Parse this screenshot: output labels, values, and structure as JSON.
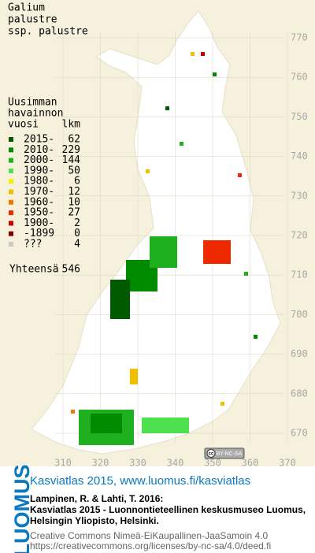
{
  "title": [
    "Galium",
    "palustre",
    "ssp. palustre"
  ],
  "legend": {
    "header": [
      "Uusimman",
      "havainnon",
      "vuosi"
    ],
    "count_header": "lkm",
    "rows": [
      {
        "label": "2015-",
        "count": 62,
        "color": "#005a00"
      },
      {
        "label": "2010-",
        "count": 229,
        "color": "#008a00"
      },
      {
        "label": "2000-",
        "count": 144,
        "color": "#1fb01f"
      },
      {
        "label": "1990-",
        "count": 50,
        "color": "#4ee04e"
      },
      {
        "label": "1980-",
        "count": 6,
        "color": "#f2f200"
      },
      {
        "label": "1970-",
        "count": 12,
        "color": "#f0c000"
      },
      {
        "label": "1960-",
        "count": 10,
        "color": "#f07800"
      },
      {
        "label": "1950-",
        "count": 27,
        "color": "#f02800"
      },
      {
        "label": "1900-",
        "count": 2,
        "color": "#c80000"
      },
      {
        "label": "-1899",
        "count": 0,
        "color": "#800000"
      },
      {
        "label": "???",
        "count": 4,
        "color": "#c8c8c8"
      }
    ],
    "total_label": "Yhteensä",
    "total": 546
  },
  "grid": {
    "yticks": [
      670,
      680,
      690,
      700,
      710,
      720,
      730,
      740,
      750,
      760,
      770
    ],
    "xticks": [
      310,
      320,
      330,
      340,
      350,
      360,
      370
    ]
  },
  "license_badge": {
    "icon": "cc",
    "text": "BY-NC-SA"
  },
  "footer": {
    "brand": "LUOMUS",
    "headline": "Kasviatlas 2015, www.luomus.fi/kasviatlas",
    "citation": [
      "Lampinen, R. & Lahti, T. 2016:",
      "Kasviatlas 2015 - Luonnontieteellinen keskusmuseo Luomus,",
      "Helsingin Yliopisto, Helsinki."
    ],
    "license": [
      "Creative Commons Nimeä-EiKaupallinen-JaaSamoin 4.0",
      "https://creativecommons.org/licenses/by-nc-sa/4.0/deed.fi"
    ]
  }
}
